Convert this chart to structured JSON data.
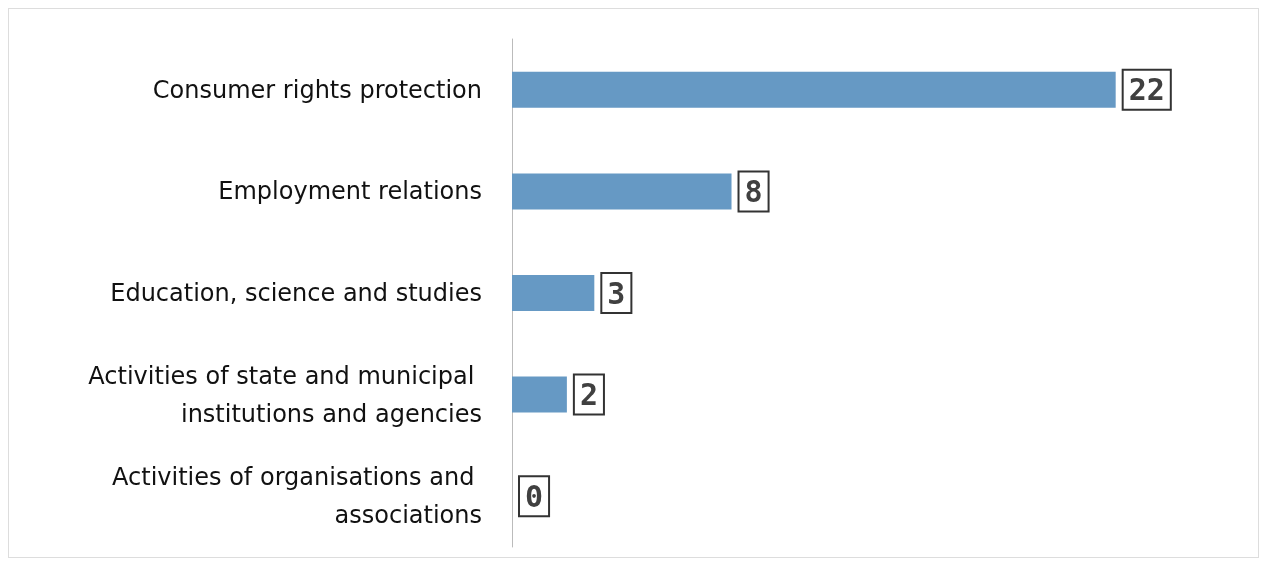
{
  "chart_data": {
    "type": "bar",
    "orientation": "horizontal",
    "categories": [
      "Consumer rights protection",
      "Employment relations",
      "Education, science and studies",
      "Activities of state and municipal institutions and agencies",
      "Activities of organisations and associations"
    ],
    "values": [
      22,
      8,
      3,
      2,
      0
    ],
    "color": "#6699c4",
    "data_labels": true,
    "tick_labels": "y"
  }
}
